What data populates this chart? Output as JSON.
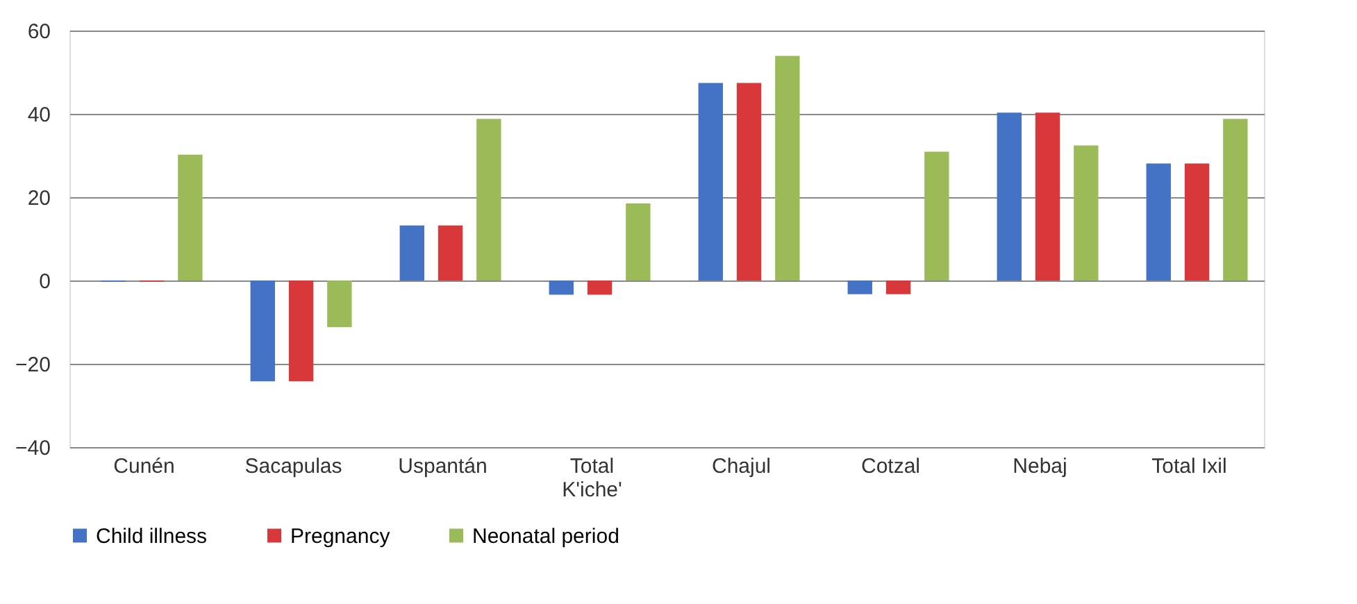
{
  "chart_data": {
    "type": "bar",
    "categories": [
      "Cunén",
      "Sacapulas",
      "Uspantán",
      "Total K'iche'",
      "Chajul",
      "Cotzal",
      "Nebaj",
      "Total Ixil"
    ],
    "series": [
      {
        "name": "Child illness",
        "color": "#4472c4",
        "values": [
          -0.3,
          -24.2,
          13.2,
          -3.4,
          47.4,
          -3.3,
          40.3,
          28.1
        ]
      },
      {
        "name": "Pregnancy",
        "color": "#d9383a",
        "values": [
          -0.3,
          -24.2,
          13.2,
          -3.4,
          47.4,
          -3.3,
          40.3,
          28.1
        ]
      },
      {
        "name": "Neonatal period",
        "color": "#9bbb59",
        "values": [
          30.2,
          -11.2,
          38.8,
          18.5,
          53.9,
          30.9,
          32.4,
          38.8
        ]
      }
    ],
    "ylim": [
      -40,
      60
    ],
    "yticks": [
      -40,
      -20,
      0,
      20,
      40,
      60
    ],
    "grid": "y",
    "legend": "bottom"
  }
}
